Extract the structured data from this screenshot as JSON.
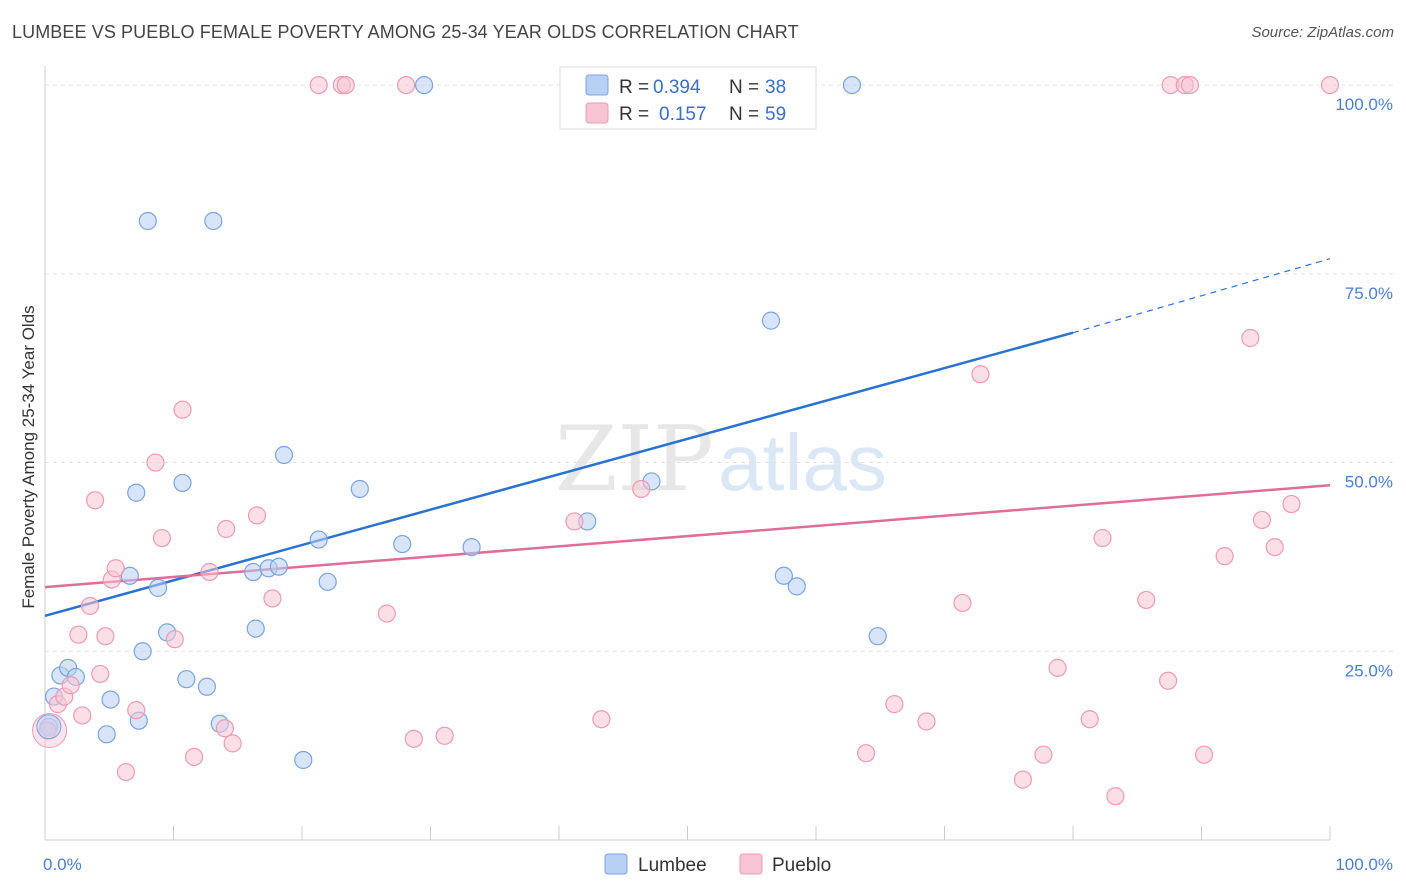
{
  "title": "LUMBEE VS PUEBLO FEMALE POVERTY AMONG 25-34 YEAR OLDS CORRELATION CHART",
  "source": "Source: ZipAtlas.com",
  "watermark": {
    "zip": "ZIP",
    "atlas": "atlas"
  },
  "colors": {
    "lumbee_fill": "#b8d0f4",
    "lumbee_stroke": "#7aa4e0",
    "lumbee_line": "#2a72d0",
    "pueblo_fill": "#f7c4d4",
    "pueblo_stroke": "#ec9ab5",
    "pueblo_line": "#e06c98"
  },
  "legend": {
    "lumbee": {
      "r_label": "R =",
      "r_value": "0.394",
      "n_label": "N =",
      "n_value": "38"
    },
    "pueblo": {
      "r_label": "R =",
      "r_value": "0.157",
      "n_label": "N =",
      "n_value": "59"
    }
  },
  "chart_data": {
    "type": "scatter",
    "title": "LUMBEE VS PUEBLO FEMALE POVERTY AMONG 25-34 YEAR OLDS CORRELATION CHART",
    "xlabel": "",
    "ylabel": "Female Poverty Among 25-34 Year Olds",
    "xlim": [
      0,
      100
    ],
    "ylim": [
      0,
      102
    ],
    "x_tick_labels": [
      "0.0%",
      "100.0%"
    ],
    "y_ticks": [
      25,
      50,
      75,
      100
    ],
    "y_tick_labels": [
      "25.0%",
      "50.0%",
      "75.0%",
      "100.0%"
    ],
    "grid": true,
    "legend_position": "top-center",
    "series": [
      {
        "name": "Lumbee",
        "points": [
          [
            0.3,
            15.0
          ],
          [
            0.7,
            19.0
          ],
          [
            1.2,
            21.8
          ],
          [
            1.8,
            22.8
          ],
          [
            2.4,
            21.6
          ],
          [
            4.8,
            14.0
          ],
          [
            5.1,
            18.6
          ],
          [
            6.6,
            35.0
          ],
          [
            7.1,
            46.0
          ],
          [
            7.3,
            15.8
          ],
          [
            7.6,
            25.0
          ],
          [
            8.8,
            33.4
          ],
          [
            9.5,
            27.5
          ],
          [
            10.7,
            47.3
          ],
          [
            8.0,
            82.0
          ],
          [
            11.0,
            21.3
          ],
          [
            12.6,
            20.3
          ],
          [
            13.1,
            82.0
          ],
          [
            13.6,
            15.4
          ],
          [
            16.2,
            35.5
          ],
          [
            16.4,
            28.0
          ],
          [
            17.4,
            36.0
          ],
          [
            18.2,
            36.2
          ],
          [
            18.6,
            51.0
          ],
          [
            20.1,
            10.6
          ],
          [
            21.3,
            39.8
          ],
          [
            22.0,
            34.2
          ],
          [
            24.5,
            46.5
          ],
          [
            27.8,
            39.2
          ],
          [
            29.5,
            100.0
          ],
          [
            33.2,
            38.8
          ],
          [
            42.2,
            42.2
          ],
          [
            47.2,
            47.5
          ],
          [
            56.5,
            68.8
          ],
          [
            57.5,
            35.0
          ],
          [
            58.5,
            33.6
          ],
          [
            62.8,
            100.0
          ],
          [
            64.8,
            27.0
          ]
        ]
      },
      {
        "name": "Pueblo",
        "points": [
          [
            0.2,
            14.5
          ],
          [
            1.0,
            18.0
          ],
          [
            1.5,
            19.0
          ],
          [
            2.0,
            20.5
          ],
          [
            2.6,
            27.2
          ],
          [
            2.9,
            16.5
          ],
          [
            3.5,
            31.0
          ],
          [
            3.9,
            45.0
          ],
          [
            4.3,
            22.0
          ],
          [
            4.7,
            27.0
          ],
          [
            5.2,
            34.5
          ],
          [
            5.5,
            36.0
          ],
          [
            6.3,
            9.0
          ],
          [
            7.1,
            17.2
          ],
          [
            8.6,
            50.0
          ],
          [
            9.1,
            40.0
          ],
          [
            10.1,
            26.6
          ],
          [
            10.7,
            57.0
          ],
          [
            11.6,
            11.0
          ],
          [
            12.8,
            35.5
          ],
          [
            14.0,
            14.8
          ],
          [
            14.1,
            41.2
          ],
          [
            14.6,
            12.8
          ],
          [
            16.5,
            43.0
          ],
          [
            17.7,
            32.0
          ],
          [
            21.3,
            100.0
          ],
          [
            23.1,
            100.0
          ],
          [
            23.4,
            100.0
          ],
          [
            26.6,
            30.0
          ],
          [
            28.1,
            100.0
          ],
          [
            28.7,
            13.4
          ],
          [
            31.1,
            13.8
          ],
          [
            41.2,
            42.2
          ],
          [
            43.3,
            16.0
          ],
          [
            46.4,
            46.5
          ],
          [
            58.3,
            100.0
          ],
          [
            63.9,
            11.5
          ],
          [
            66.1,
            18.0
          ],
          [
            68.6,
            15.7
          ],
          [
            71.4,
            31.4
          ],
          [
            72.8,
            61.7
          ],
          [
            76.1,
            8.0
          ],
          [
            77.7,
            11.3
          ],
          [
            78.8,
            22.8
          ],
          [
            81.3,
            16.0
          ],
          [
            82.3,
            40.0
          ],
          [
            83.3,
            5.8
          ],
          [
            85.7,
            31.8
          ],
          [
            87.4,
            21.1
          ],
          [
            87.6,
            100.0
          ],
          [
            88.7,
            100.0
          ],
          [
            89.1,
            100.0
          ],
          [
            90.2,
            11.3
          ],
          [
            91.8,
            37.6
          ],
          [
            93.8,
            66.5
          ],
          [
            94.7,
            42.4
          ],
          [
            95.7,
            38.8
          ],
          [
            97.0,
            44.5
          ],
          [
            100.0,
            100.0
          ]
        ]
      }
    ],
    "trendlines": [
      {
        "series": "Lumbee",
        "x": [
          0,
          80
        ],
        "y": [
          29.7,
          67.2
        ],
        "dashed_extension_to": [
          100,
          77.0
        ]
      },
      {
        "series": "Pueblo",
        "x": [
          0,
          100
        ],
        "y": [
          33.5,
          47.0
        ]
      }
    ]
  },
  "bottom_legend": [
    "Lumbee",
    "Pueblo"
  ]
}
